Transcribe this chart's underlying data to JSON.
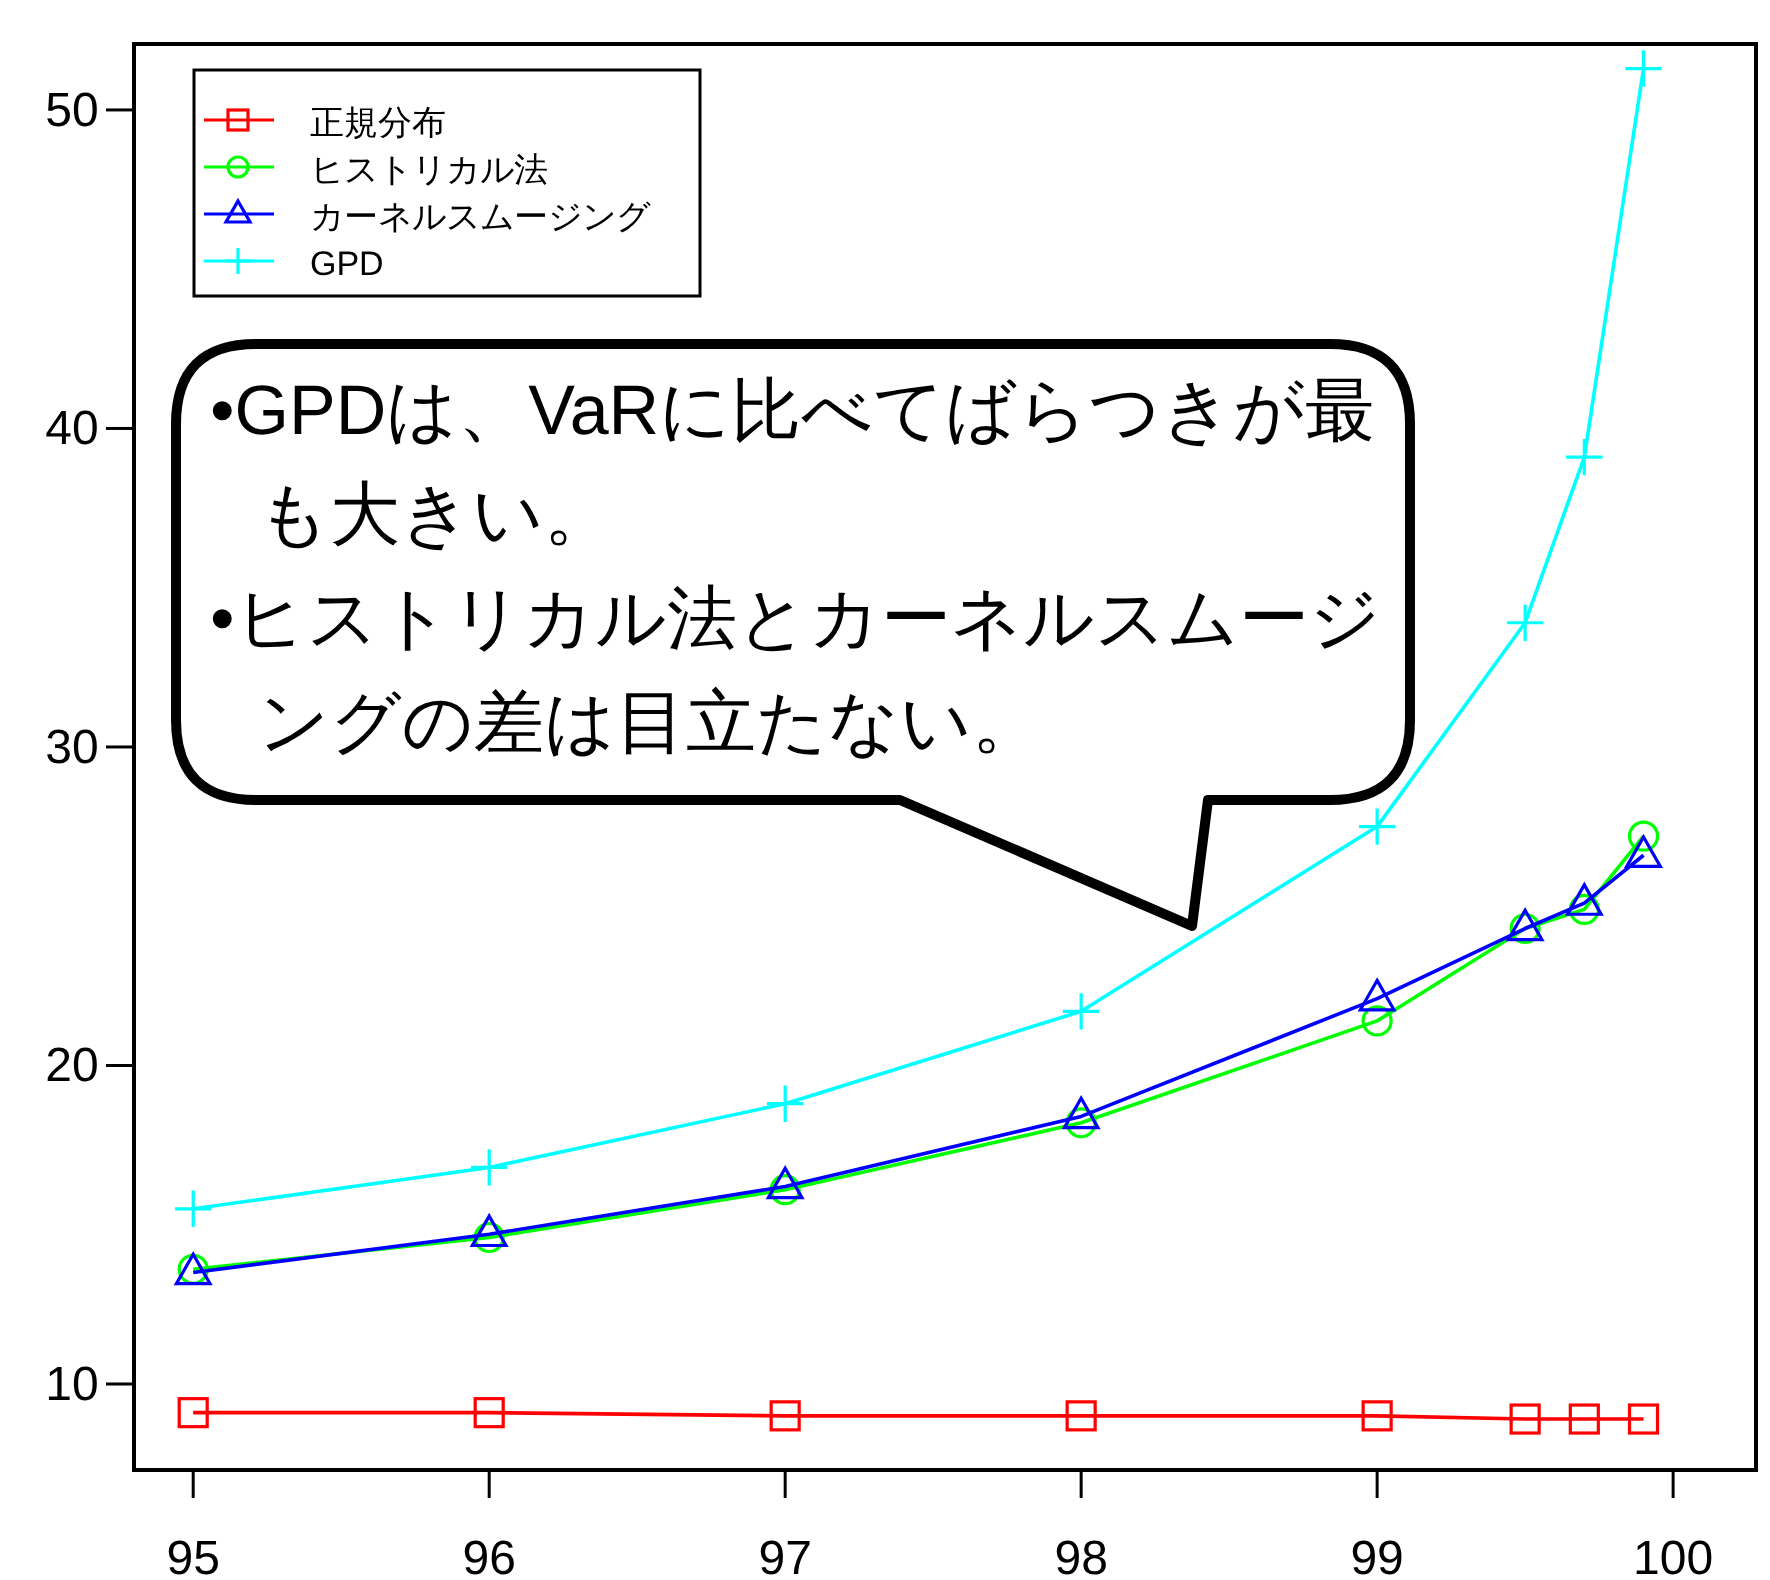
{
  "chart_data": {
    "type": "line",
    "x": [
      95,
      96,
      97,
      98,
      99,
      99.5,
      99.7,
      99.9
    ],
    "xlim": [
      94.8,
      100.28
    ],
    "ylim": [
      7.3,
      52.07
    ],
    "xticks": [
      95,
      96,
      97,
      98,
      99,
      100
    ],
    "yticks": [
      10,
      20,
      30,
      40,
      50
    ],
    "grid": false,
    "legend": "top left",
    "line_style": "solid",
    "series": [
      {
        "name": "正規分布",
        "color": "#ff0000",
        "marker": "square",
        "values": [
          9.1,
          9.1,
          9.0,
          9.0,
          9.0,
          8.9,
          8.9,
          8.9
        ]
      },
      {
        "name": "ヒストリカル法",
        "color": "#00ff00",
        "marker": "circle",
        "values": [
          13.6,
          14.6,
          16.1,
          18.2,
          21.4,
          24.3,
          24.9,
          27.2
        ]
      },
      {
        "name": "カーネルスムージング",
        "color": "#0000ff",
        "marker": "triangle",
        "values": [
          13.5,
          14.7,
          16.2,
          18.4,
          22.1,
          24.3,
          25.1,
          26.6
        ]
      },
      {
        "name": "GPD",
        "color": "#00ffff",
        "marker": "cross",
        "values": [
          15.5,
          16.8,
          18.8,
          21.7,
          27.5,
          33.9,
          39.1,
          51.3
        ]
      }
    ],
    "annotations": [
      "•GPDは、VaRに比べてばらつきが最も大きい。",
      "•ヒストリカル法とカーネルスムージングの差は目立たない。"
    ]
  }
}
